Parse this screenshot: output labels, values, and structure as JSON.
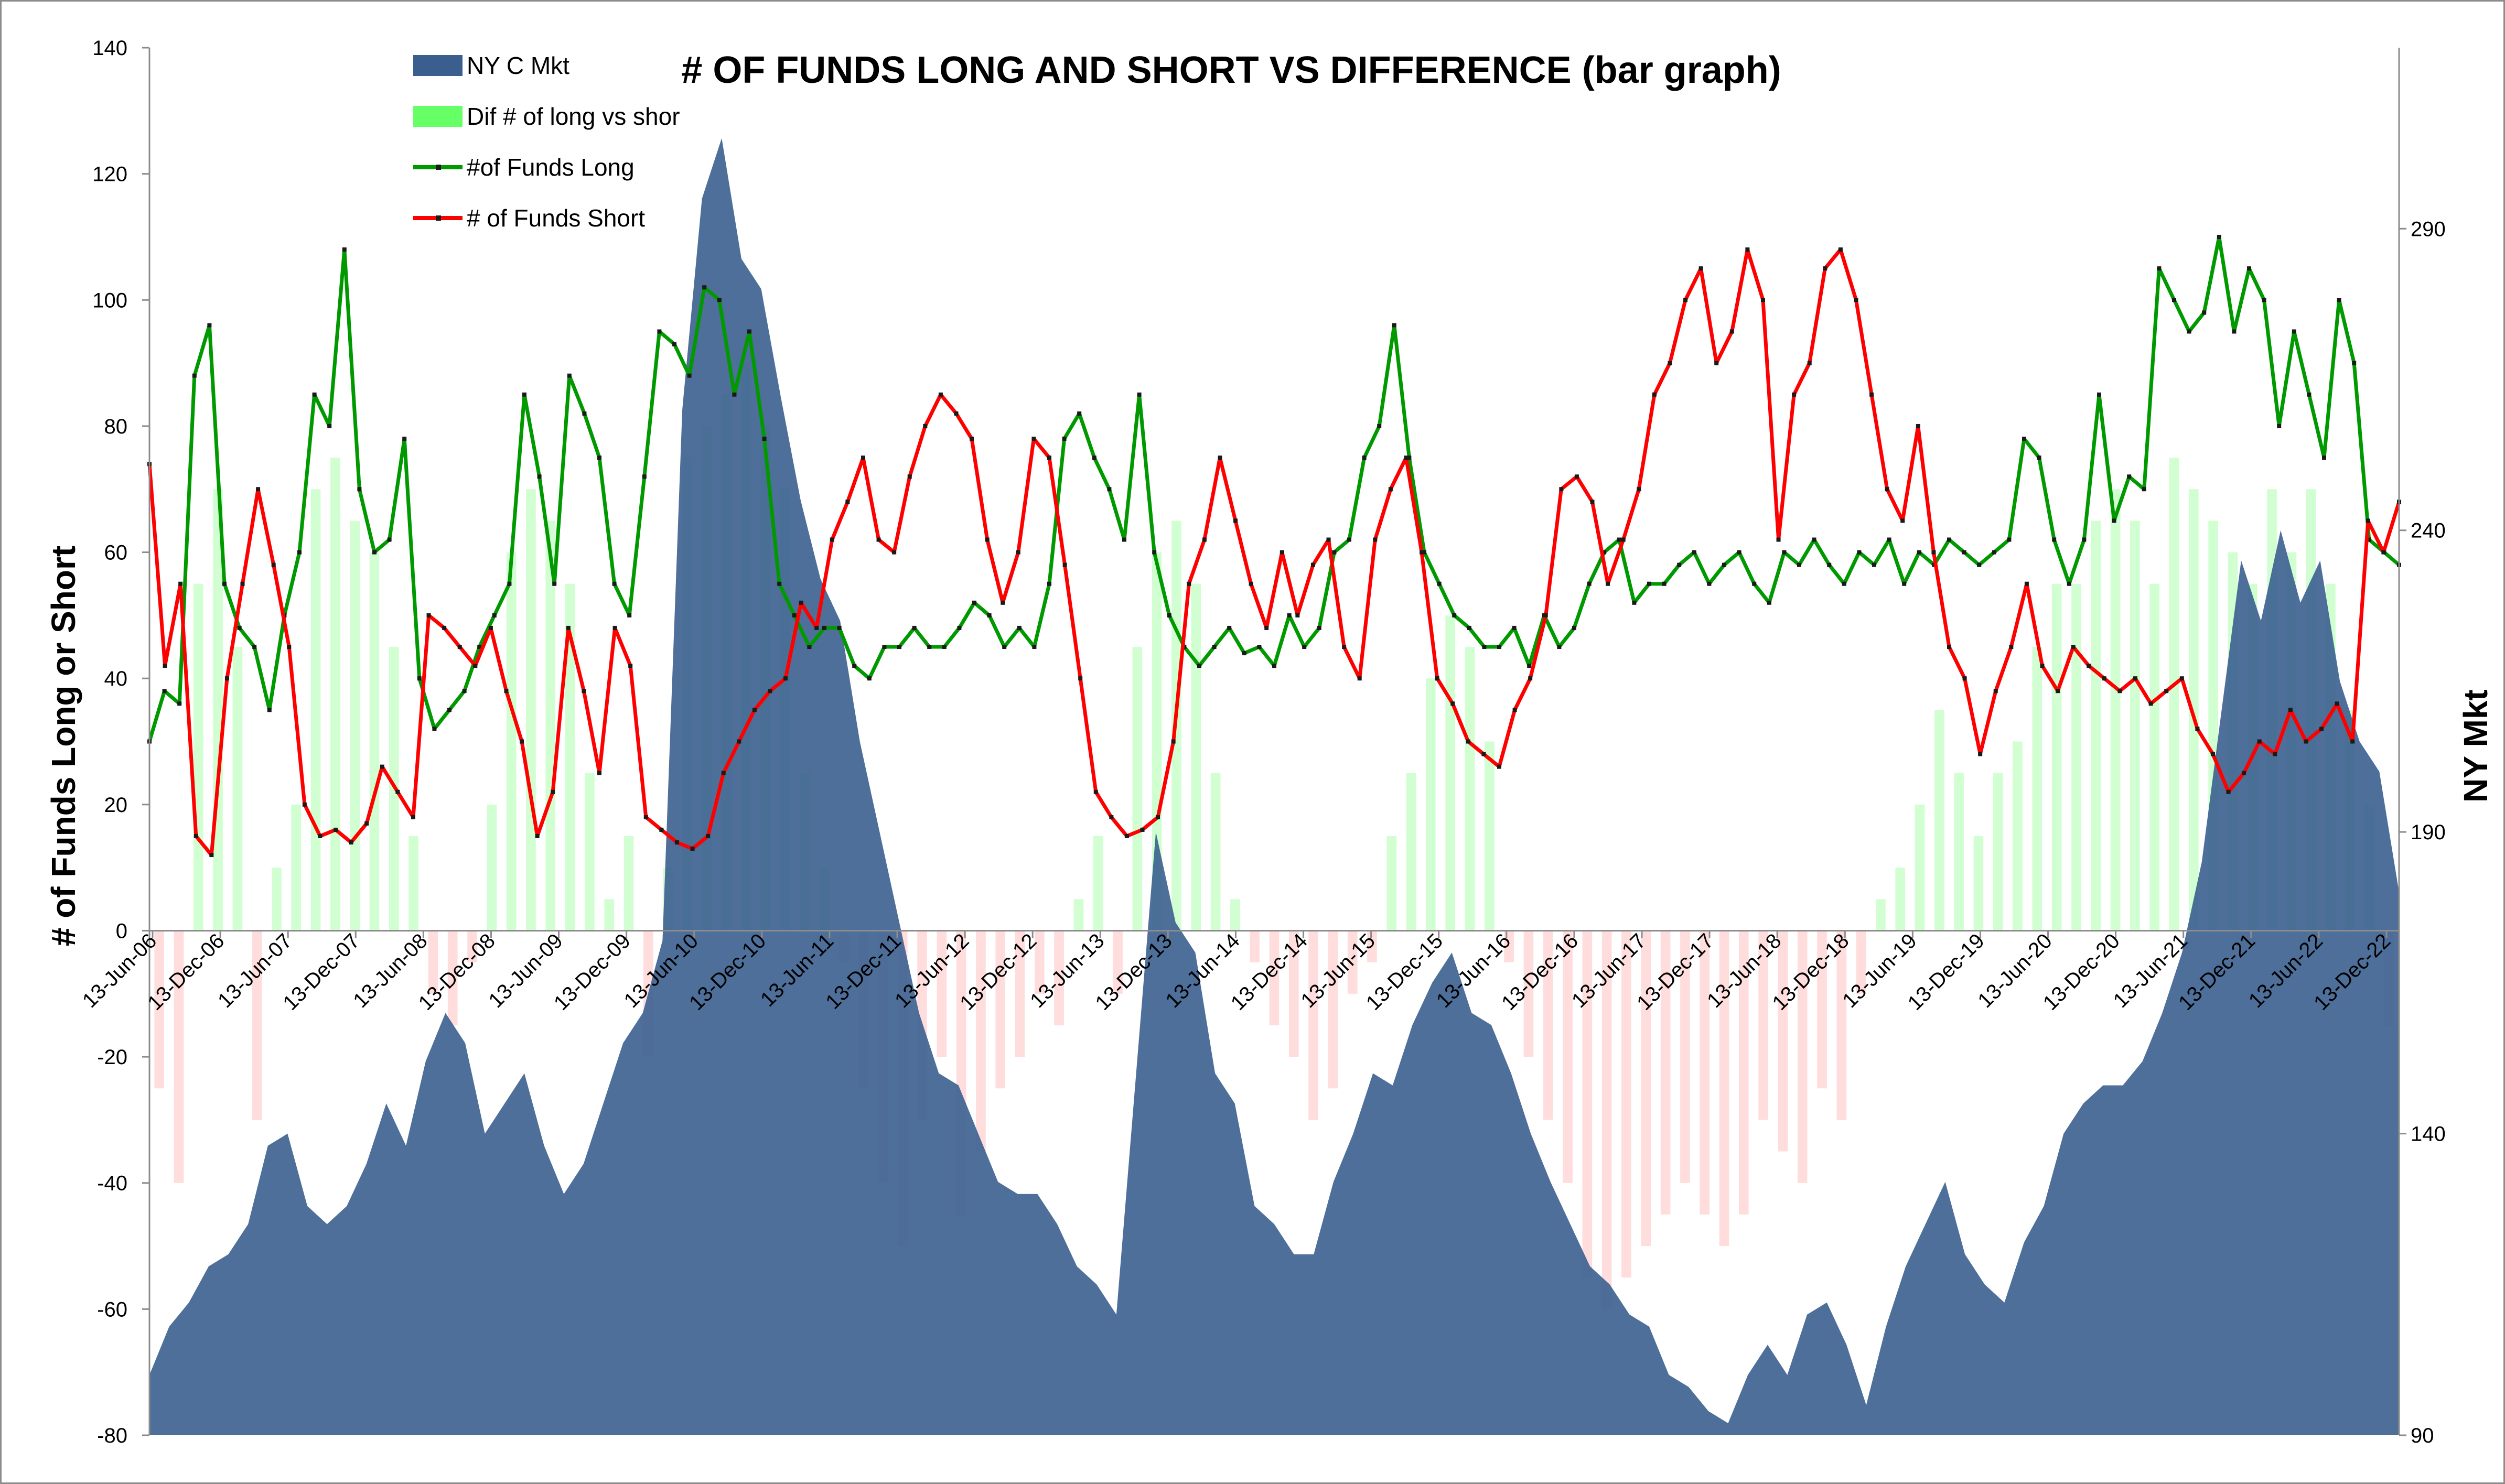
{
  "chart_data": {
    "type": "line",
    "title": "# OF FUNDS LONG AND SHORT VS DIFFERENCE (bar graph)",
    "ylabel": "# of Funds Long or Short",
    "y2label": "NY Mkt",
    "ylim": [
      -80,
      140
    ],
    "y2lim": [
      90,
      320
    ],
    "yticks": [
      "140",
      "120",
      "100",
      "80",
      "60",
      "40",
      "20",
      "0",
      "-20",
      "-40",
      "-60",
      "-80"
    ],
    "y2ticks": [
      "290",
      "240",
      "190",
      "140",
      "90"
    ],
    "x_tick_labels": [
      "13-Jun-06",
      "13-Dec-06",
      "13-Jun-07",
      "13-Dec-07",
      "13-Jun-08",
      "13-Dec-08",
      "13-Jun-09",
      "13-Dec-09",
      "13-Jun-10",
      "13-Dec-10",
      "13-Jun-11",
      "13-Dec-11",
      "13-Jun-12",
      "13-Dec-12",
      "13-Jun-13",
      "13-Dec-13",
      "13-Jun-14",
      "13-Dec-14",
      "13-Jun-15",
      "13-Dec-15",
      "13-Jun-16",
      "13-Dec-16",
      "13-Jun-17",
      "13-Dec-17",
      "13-Jun-18",
      "13-Dec-18",
      "13-Jun-19",
      "13-Dec-19",
      "13-Jun-20",
      "13-Dec-20",
      "13-Jun-21",
      "13-Dec-21",
      "13-Jun-22",
      "13-Dec-22"
    ],
    "legend_position": "top-left",
    "grid": false,
    "series": [
      {
        "name": "NY C Mkt",
        "kind": "area",
        "axis": "right",
        "color": "#3a5f8f",
        "values": [
          100,
          108,
          112,
          118,
          120,
          125,
          138,
          140,
          128,
          125,
          128,
          135,
          145,
          138,
          152,
          160,
          155,
          140,
          145,
          150,
          138,
          130,
          135,
          145,
          155,
          160,
          172,
          260,
          295,
          305,
          285,
          280,
          262,
          245,
          232,
          225,
          205,
          190,
          175,
          160,
          150,
          148,
          140,
          132,
          130,
          130,
          125,
          118,
          115,
          110,
          150,
          190,
          175,
          170,
          150,
          145,
          128,
          125,
          120,
          120,
          132,
          140,
          150,
          148,
          158,
          165,
          170,
          160,
          158,
          150,
          140,
          132,
          125,
          118,
          115,
          110,
          108,
          100,
          98,
          94,
          92,
          100,
          105,
          100,
          110,
          112,
          105,
          95,
          108,
          118,
          125,
          132,
          120,
          115,
          112,
          122,
          128,
          140,
          145,
          148,
          148,
          152,
          160,
          170,
          185,
          210,
          235,
          225,
          240,
          228,
          235,
          215,
          205,
          200,
          180
        ]
      },
      {
        "name": "Dif # of long vs shor",
        "kind": "bar",
        "axis": "left",
        "color": "#66ff66",
        "values": [
          -25,
          -40,
          55,
          70,
          45,
          -30,
          10,
          20,
          70,
          75,
          65,
          60,
          45,
          15,
          -10,
          -15,
          -5,
          20,
          60,
          70,
          65,
          55,
          25,
          5,
          15,
          -20,
          10,
          75,
          80,
          85,
          90,
          80,
          70,
          25,
          10,
          -5,
          -25,
          -40,
          -50,
          -30,
          -20,
          -45,
          -35,
          -25,
          -20,
          -10,
          -15,
          5,
          15,
          -10,
          45,
          60,
          65,
          55,
          25,
          5,
          -5,
          -15,
          -20,
          -30,
          -25,
          -10,
          -5,
          15,
          25,
          40,
          50,
          45,
          30,
          -5,
          -20,
          -30,
          -40,
          -55,
          -60,
          -55,
          -50,
          -45,
          -40,
          -45,
          -50,
          -45,
          -30,
          -35,
          -40,
          -25,
          -30,
          -10,
          5,
          10,
          20,
          35,
          25,
          15,
          25,
          30,
          45,
          55,
          55,
          65,
          70,
          65,
          55,
          75,
          70,
          65,
          60,
          55,
          70,
          60,
          70,
          55,
          35,
          20,
          -15
        ]
      },
      {
        "name": "#of Funds Long",
        "kind": "line",
        "axis": "left",
        "color": "#009900",
        "values": [
          30,
          38,
          36,
          88,
          96,
          55,
          48,
          45,
          35,
          50,
          60,
          85,
          80,
          108,
          70,
          60,
          62,
          78,
          40,
          32,
          35,
          38,
          45,
          50,
          55,
          85,
          72,
          55,
          88,
          82,
          75,
          55,
          50,
          72,
          95,
          93,
          88,
          102,
          100,
          85,
          95,
          78,
          55,
          50,
          45,
          48,
          48,
          42,
          40,
          45,
          45,
          48,
          45,
          45,
          48,
          52,
          50,
          45,
          48,
          45,
          55,
          78,
          82,
          75,
          70,
          62,
          85,
          60,
          50,
          45,
          42,
          45,
          48,
          44,
          45,
          42,
          50,
          45,
          48,
          60,
          62,
          75,
          80,
          96,
          75,
          60,
          55,
          50,
          48,
          45,
          45,
          48,
          42,
          50,
          45,
          48,
          55,
          60,
          62,
          52,
          55,
          55,
          58,
          60,
          55,
          58,
          60,
          55,
          52,
          60,
          58,
          62,
          58,
          55,
          60,
          58,
          62,
          55,
          60,
          58,
          62,
          60,
          58,
          60,
          62,
          78,
          75,
          62,
          55,
          62,
          85,
          65,
          72,
          70,
          105,
          100,
          95,
          98,
          110,
          95,
          105,
          100,
          80,
          95,
          85,
          75,
          100,
          90,
          62,
          60,
          58
        ]
      },
      {
        "name": "# of Funds Short",
        "kind": "line",
        "axis": "left",
        "color": "#ff0000",
        "values": [
          74,
          42,
          55,
          15,
          12,
          40,
          55,
          70,
          58,
          45,
          20,
          15,
          16,
          14,
          17,
          26,
          22,
          18,
          50,
          48,
          45,
          42,
          48,
          38,
          30,
          15,
          22,
          48,
          38,
          25,
          48,
          42,
          18,
          16,
          14,
          13,
          15,
          25,
          30,
          35,
          38,
          40,
          52,
          48,
          62,
          68,
          75,
          62,
          60,
          72,
          80,
          85,
          82,
          78,
          62,
          52,
          60,
          78,
          75,
          58,
          40,
          22,
          18,
          15,
          16,
          18,
          30,
          55,
          62,
          75,
          65,
          55,
          48,
          60,
          50,
          58,
          62,
          45,
          40,
          62,
          70,
          75,
          60,
          40,
          36,
          30,
          28,
          26,
          35,
          40,
          50,
          70,
          72,
          68,
          55,
          62,
          70,
          85,
          90,
          100,
          105,
          90,
          95,
          108,
          100,
          62,
          85,
          90,
          105,
          108,
          100,
          85,
          70,
          65,
          80,
          60,
          45,
          40,
          28,
          38,
          45,
          55,
          42,
          38,
          45,
          42,
          40,
          38,
          40,
          36,
          38,
          40,
          32,
          28,
          22,
          25,
          30,
          28,
          35,
          30,
          32,
          36,
          30,
          65,
          60,
          68
        ]
      }
    ]
  }
}
